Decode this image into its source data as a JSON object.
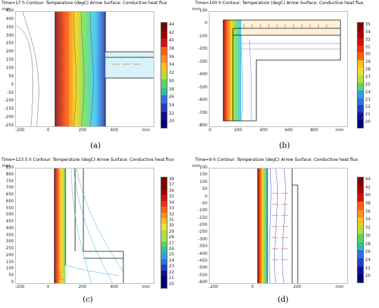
{
  "panels": {
    "a": {
      "title": "Time=17 h  Contour: Temperature (degC)   Arrow Surface: Conductive heat flux",
      "unit": "mm",
      "caption": "(a)",
      "xticks": [
        "-200",
        "0",
        "200",
        "400",
        "mm"
      ],
      "yticks": [
        "450",
        "400",
        "350",
        "300",
        "250",
        "200",
        "150",
        "100",
        "50",
        "0",
        "-50",
        "-100",
        "-150",
        "-200",
        "-250"
      ],
      "colorbar": [
        "44",
        "42",
        "40",
        "38",
        "36",
        "34",
        "32",
        "30",
        "28",
        "26",
        "24",
        "22",
        "20"
      ]
    },
    "b": {
      "title": "Time=100 h  Contour: Temperature (degC)   Arrow Surface: Conductive heat flux",
      "unit": "mm",
      "caption": "(b)",
      "xticks": [
        "0",
        "200",
        "400",
        "600",
        "800",
        "mm"
      ],
      "yticks": [
        "100",
        "0",
        "-100",
        "-200",
        "-300",
        "-400",
        "-500",
        "-600",
        "-700",
        "-800"
      ],
      "colorbar": [
        "35",
        "34",
        "32",
        "31",
        "30",
        "29",
        "28",
        "27",
        "25",
        "24",
        "23",
        "22",
        "21",
        "20"
      ]
    },
    "c": {
      "title": "Time=123.5 h  Contour: Temperature (degC)   Arrow Surface: Conductive heat flux",
      "unit": "mm",
      "caption": "(c)",
      "xticks": [
        "-200",
        "0",
        "200",
        "400",
        "mm"
      ],
      "yticks": [
        "850",
        "800",
        "750",
        "700",
        "650",
        "600",
        "550",
        "500",
        "450",
        "400",
        "350",
        "300",
        "250",
        "200",
        "150",
        "100",
        "50",
        "0"
      ],
      "colorbar": [
        "38",
        "37",
        "36",
        "35",
        "34",
        "33",
        "32",
        "31",
        "30",
        "29",
        "28",
        "27",
        "26",
        "25",
        "24",
        "23",
        "22",
        "21",
        "20"
      ]
    },
    "d": {
      "title": "Time=9 h  Contour: Temperature (degC)   Arrow Surface: Conductive heat flux",
      "unit": "mm",
      "caption": "(d)",
      "xticks": [
        "-200",
        "0",
        "200",
        "mm"
      ],
      "yticks": [
        "200",
        "150",
        "100",
        "50",
        "0",
        "-50",
        "-100",
        "-150",
        "-200",
        "-250",
        "-300",
        "-350",
        "-400",
        "-450",
        "-500",
        "-550",
        "-600"
      ],
      "colorbar": [
        "44",
        "42",
        "40",
        "38",
        "36",
        "34",
        "32",
        "30",
        "28",
        "26",
        "24",
        "22",
        "20"
      ]
    }
  },
  "colors": {
    "hot": "#8b0000",
    "cold": "#00008b"
  }
}
